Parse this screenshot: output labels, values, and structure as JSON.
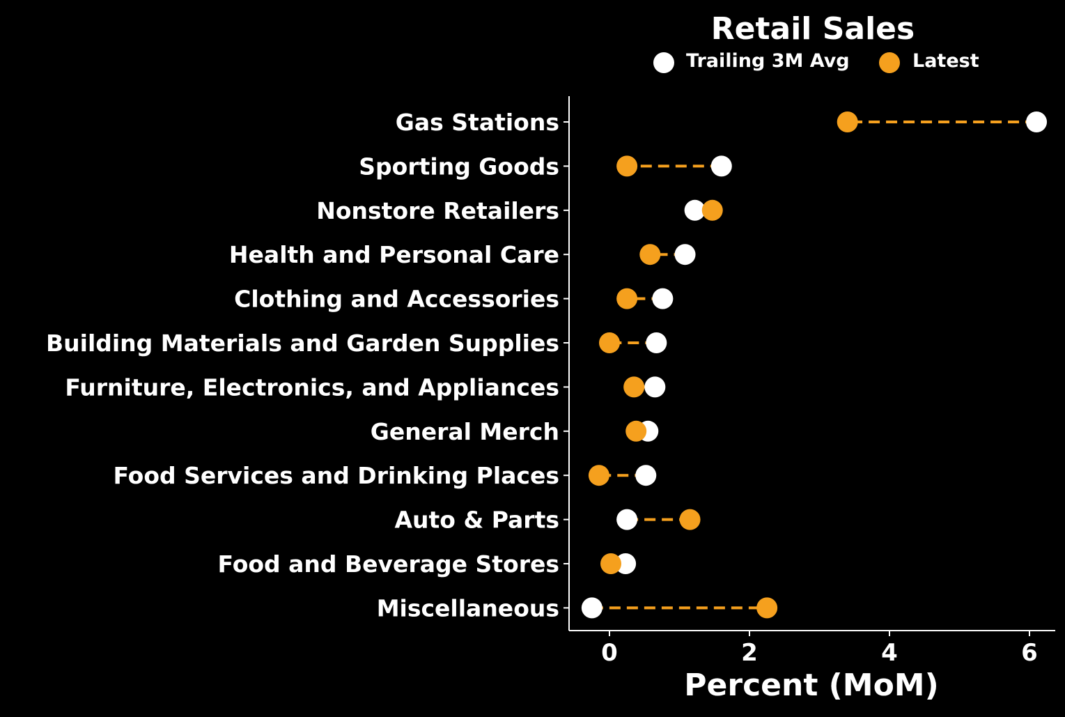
{
  "chart_data": {
    "type": "dumbbell",
    "title": "Retail Sales",
    "xlabel": "Percent (MoM)",
    "ylabel": "",
    "xlim": [
      -0.55,
      6.4
    ],
    "xticks": [
      0,
      2,
      4,
      6
    ],
    "xtick_labels": [
      "0",
      "2",
      "4",
      "6"
    ],
    "grid": false,
    "legend_position": "top",
    "categories": [
      "Gas Stations",
      "Sporting Goods",
      "Nonstore Retailers",
      "Health and Personal Care",
      "Clothing and Accessories",
      "Building Materials and Garden Supplies",
      "Furniture, Electronics, and Appliances",
      "General Merch",
      "Food Services and Drinking Places",
      "Auto & Parts",
      "Food and Beverage Stores",
      "Miscellaneous"
    ],
    "series": [
      {
        "name": "Trailing 3M Avg",
        "color": "#ffffff",
        "values": [
          6.1,
          1.6,
          1.22,
          1.08,
          0.76,
          0.67,
          0.65,
          0.55,
          0.52,
          0.25,
          0.23,
          -0.25
        ]
      },
      {
        "name": "Latest",
        "color": "#f5a01e",
        "values": [
          3.4,
          0.25,
          1.47,
          0.58,
          0.25,
          0.0,
          0.35,
          0.38,
          -0.15,
          1.15,
          0.02,
          2.25
        ]
      }
    ]
  }
}
